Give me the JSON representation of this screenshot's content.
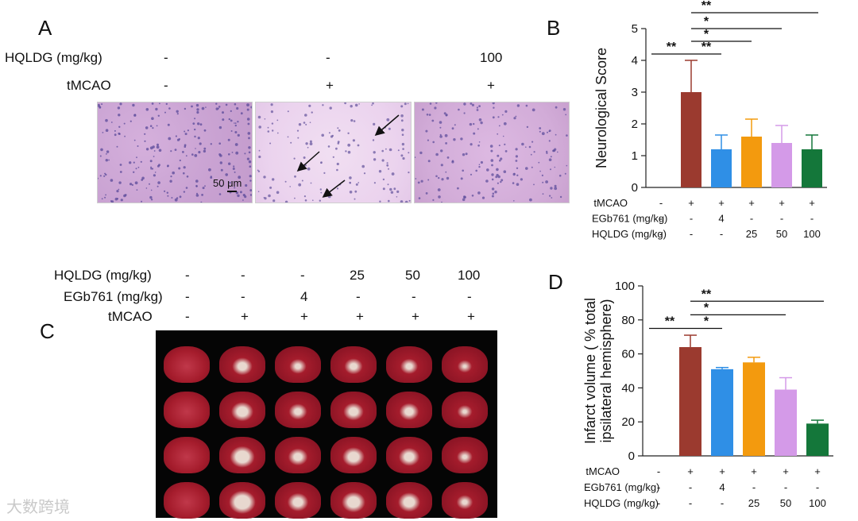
{
  "panels": {
    "A": {
      "letter": "A",
      "rows": [
        {
          "label": "HQLDG (mg/kg)",
          "values": [
            "-",
            "-",
            "100"
          ]
        },
        {
          "label": "tMCAO",
          "values": [
            "-",
            "+",
            "+"
          ]
        }
      ],
      "scale_bar": "50 μm"
    },
    "B": {
      "letter": "B"
    },
    "C": {
      "letter": "C",
      "rows": [
        {
          "label": "HQLDG (mg/kg)",
          "values": [
            "-",
            "-",
            "-",
            "25",
            "50",
            "100"
          ]
        },
        {
          "label": "EGb761 (mg/kg)",
          "values": [
            "-",
            "-",
            "4",
            "-",
            "-",
            "-"
          ]
        },
        {
          "label": "tMCAO",
          "values": [
            "-",
            "+",
            "+",
            "+",
            "+",
            "+"
          ]
        }
      ]
    },
    "D": {
      "letter": "D"
    }
  },
  "chart_data": [
    {
      "type": "bar",
      "panel": "B",
      "ylabel": "Neurological Score",
      "ylim": [
        0,
        5
      ],
      "yticks": [
        0,
        1,
        2,
        3,
        4,
        5
      ],
      "values": [
        0,
        3.0,
        1.2,
        1.6,
        1.4,
        1.2
      ],
      "errors": [
        0,
        1.0,
        0.45,
        0.55,
        0.55,
        0.45
      ],
      "colors": [
        "#ffffff",
        "#9b3a2f",
        "#2f8fe6",
        "#f39a0e",
        "#d49ae8",
        "#14773a"
      ],
      "row_labels": [
        {
          "label": "tMCAO",
          "values": [
            "-",
            "+",
            "+",
            "+",
            "+",
            "+"
          ]
        },
        {
          "label": "EGb761  (mg/kg)",
          "values": [
            "-",
            "-",
            "4",
            "-",
            "-",
            "-"
          ]
        },
        {
          "label": "HQLDG  (mg/kg)",
          "values": [
            "-",
            "-",
            "-",
            "25",
            "50",
            "100"
          ]
        }
      ],
      "significance": [
        {
          "from": 0,
          "to": 1,
          "mark": "**",
          "level": 4.2
        },
        {
          "from": 1,
          "to": 2,
          "mark": "**",
          "level": 4.2
        },
        {
          "from": 1,
          "to": 3,
          "mark": "*",
          "level": 4.6
        },
        {
          "from": 1,
          "to": 4,
          "mark": "*",
          "level": 5.0
        },
        {
          "from": 1,
          "to": 5,
          "mark": "**",
          "level": 5.5
        }
      ]
    },
    {
      "type": "bar",
      "panel": "D",
      "ylabel": "Infarct volume ( % total ipsilateral hemisphere)",
      "ylim": [
        0,
        100
      ],
      "yticks": [
        0,
        20,
        40,
        60,
        80,
        100
      ],
      "values": [
        0,
        64,
        51,
        55,
        39,
        19
      ],
      "errors": [
        0,
        7,
        1,
        3,
        7,
        2
      ],
      "colors": [
        "#ffffff",
        "#9b3a2f",
        "#2f8fe6",
        "#f39a0e",
        "#d49ae8",
        "#14773a"
      ],
      "row_labels": [
        {
          "label": "tMCAO",
          "values": [
            "-",
            "+",
            "+",
            "+",
            "+",
            "+"
          ]
        },
        {
          "label": "EGb761   (mg/kg)",
          "values": [
            "-",
            "-",
            "4",
            "-",
            "-",
            "-"
          ]
        },
        {
          "label": "HQLDG  (mg/kg)",
          "values": [
            "-",
            "-",
            "-",
            "25",
            "50",
            "100"
          ]
        }
      ],
      "significance": [
        {
          "from": 0,
          "to": 1,
          "mark": "**",
          "level": 75
        },
        {
          "from": 1,
          "to": 2,
          "mark": "*",
          "level": 75
        },
        {
          "from": 1,
          "to": 4,
          "mark": "*",
          "level": 83
        },
        {
          "from": 1,
          "to": 5,
          "mark": "**",
          "level": 91
        }
      ]
    }
  ],
  "watermark": "大数跨境"
}
